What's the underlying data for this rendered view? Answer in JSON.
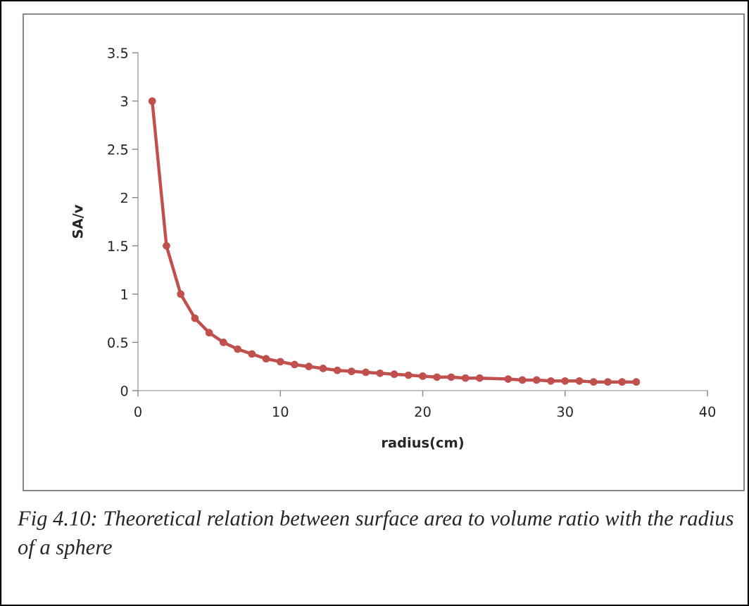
{
  "chart_data": {
    "type": "line",
    "xlabel": "radius(cm)",
    "ylabel": "SA/v",
    "x": [
      1,
      2,
      3,
      4,
      5,
      6,
      7,
      8,
      9,
      10,
      11,
      12,
      13,
      14,
      15,
      16,
      17,
      18,
      19,
      20,
      21,
      22,
      23,
      24,
      26,
      27,
      28,
      29,
      30,
      31,
      32,
      33,
      34,
      35
    ],
    "series": [
      {
        "color": "#c0504d",
        "values": [
          3,
          1.5,
          1,
          0.75,
          0.6,
          0.5,
          0.43,
          0.38,
          0.33,
          0.3,
          0.27,
          0.25,
          0.23,
          0.21,
          0.2,
          0.19,
          0.18,
          0.17,
          0.16,
          0.15,
          0.14,
          0.14,
          0.13,
          0.13,
          0.12,
          0.11,
          0.11,
          0.1,
          0.1,
          0.1,
          0.09,
          0.09,
          0.09,
          0.09
        ]
      }
    ],
    "xlim": [
      0,
      40
    ],
    "xticks": [
      0,
      10,
      20,
      30,
      40
    ],
    "ylim": [
      0,
      3.5
    ],
    "yticks": [
      0,
      0.5,
      1,
      1.5,
      2,
      2.5,
      3,
      3.5
    ],
    "marker": "circle",
    "line_style": "solid",
    "grid": false,
    "legend": false,
    "annotations": [
      "Fig 4.10: Theoretical relation between surface area to volume ratio with the radius of a sphere"
    ]
  }
}
